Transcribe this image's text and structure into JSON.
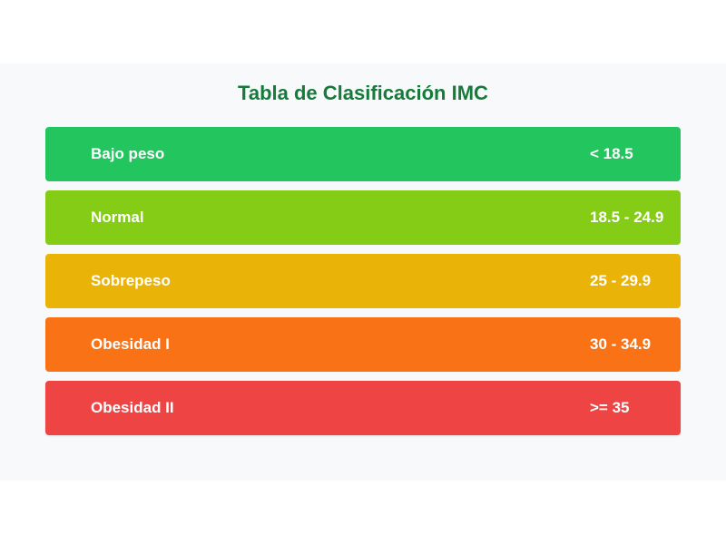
{
  "title": "Tabla de Clasificación IMC",
  "categories": [
    {
      "label": "Bajo peso",
      "range": "< 18.5",
      "color": "#22c55e"
    },
    {
      "label": "Normal",
      "range": "18.5 - 24.9",
      "color": "#84cc16"
    },
    {
      "label": "Sobrepeso",
      "range": "25 - 29.9",
      "color": "#eab308"
    },
    {
      "label": "Obesidad I",
      "range": "30 - 34.9",
      "color": "#f97316"
    },
    {
      "label": "Obesidad II",
      "range": ">= 35",
      "color": "#ef4444"
    }
  ]
}
